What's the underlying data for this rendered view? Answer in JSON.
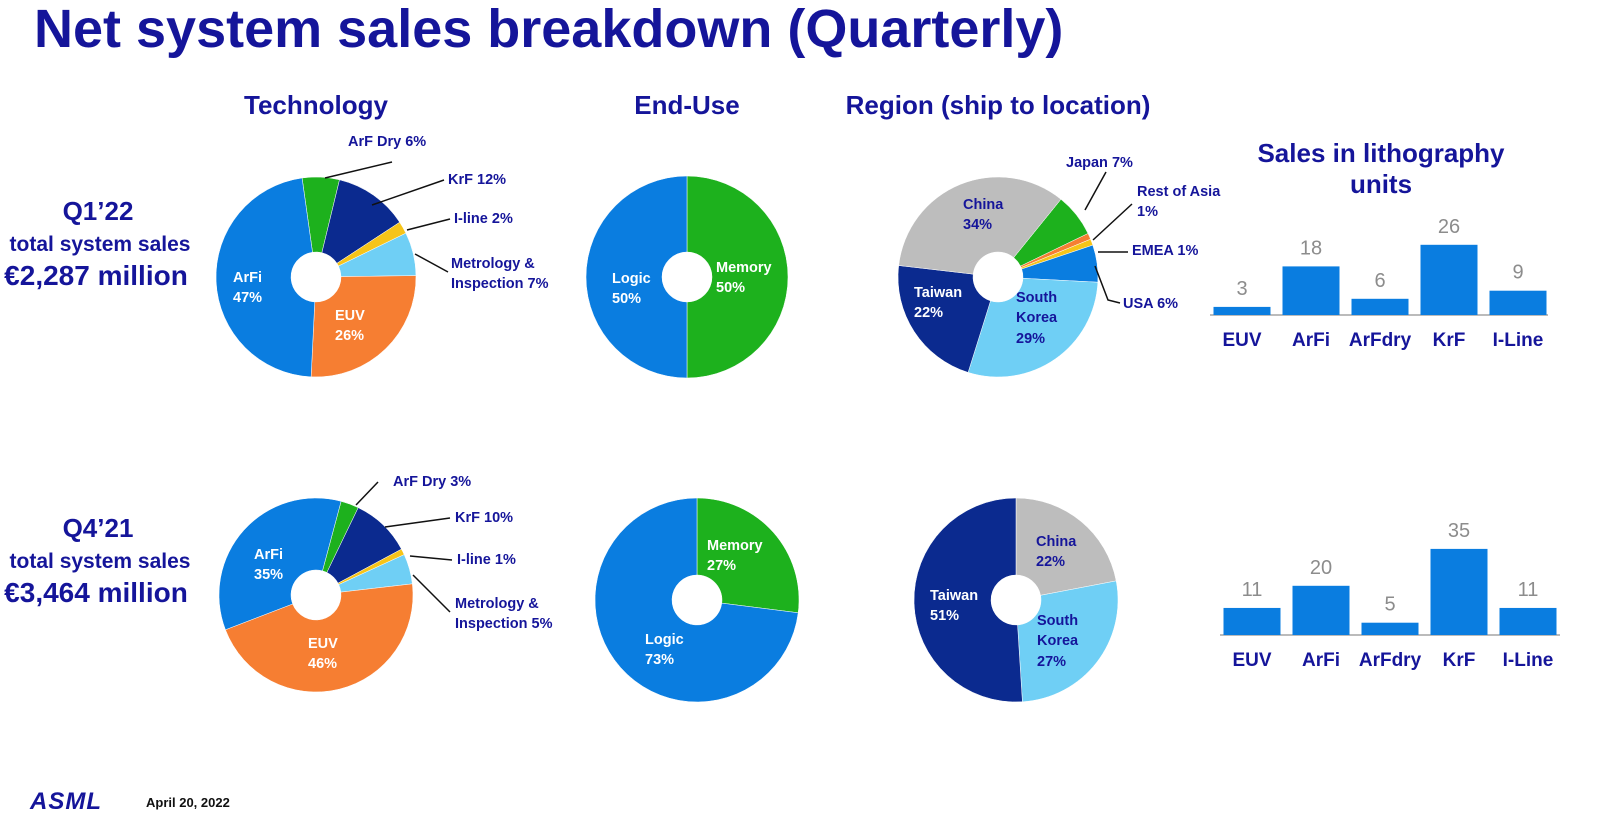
{
  "title": "Net system sales breakdown (Quarterly)",
  "column_titles": [
    "Technology",
    "End-Use",
    "Region (ship to location)"
  ],
  "units_title": "Sales in lithography units",
  "rows": [
    {
      "quarter": "Q1’22",
      "label": "total system sales",
      "amount": "€2,287 million"
    },
    {
      "quarter": "Q4’21",
      "label": "total system sales",
      "amount": "€3,464 million"
    }
  ],
  "footer": {
    "logo": "ASML",
    "date": "April 20, 2022"
  },
  "chart_data": [
    {
      "type": "pie",
      "categories": [
        "ArF Dry",
        "KrF",
        "I-line",
        "Metrology & Inspection",
        "EUV",
        "ArFi"
      ],
      "values": [
        6,
        12,
        2,
        7,
        26,
        47
      ],
      "value_labels": [
        "6%",
        "12%",
        "2%",
        "7%",
        "26%",
        "47%"
      ],
      "colors": [
        "#1db11d",
        "#0b2a8f",
        "#f6c419",
        "#6fcff5",
        "#f67e32",
        "#0a7de0"
      ]
    },
    {
      "type": "pie",
      "categories": [
        "Memory",
        "Logic"
      ],
      "values": [
        50,
        50
      ],
      "value_labels": [
        "50%",
        "50%"
      ],
      "colors": [
        "#1db11d",
        "#0a7de0"
      ]
    },
    {
      "type": "pie",
      "categories": [
        "Japan",
        "Rest of Asia",
        "EMEA",
        "USA",
        "South Korea",
        "Taiwan",
        "China"
      ],
      "values": [
        7,
        1,
        1,
        6,
        29,
        22,
        34
      ],
      "value_labels": [
        "7%",
        "1%",
        "1%",
        "6%",
        "29%",
        "22%",
        "34%"
      ],
      "colors": [
        "#1db11d",
        "#f67e32",
        "#f6c419",
        "#0a7de0",
        "#6fcff5",
        "#0b2a8f",
        "#bdbdbd"
      ]
    },
    {
      "type": "bar",
      "categories": [
        "EUV",
        "ArFi",
        "ArFdry",
        "KrF",
        "I-Line"
      ],
      "values": [
        3,
        18,
        6,
        26,
        9
      ],
      "color": "#0a7de0"
    },
    {
      "type": "pie",
      "categories": [
        "ArF Dry",
        "KrF",
        "I-line",
        "Metrology & Inspection",
        "EUV",
        "ArFi"
      ],
      "values": [
        3,
        10,
        1,
        5,
        46,
        35
      ],
      "value_labels": [
        "3%",
        "10%",
        "1%",
        "5%",
        "46%",
        "35%"
      ],
      "colors": [
        "#1db11d",
        "#0b2a8f",
        "#f6c419",
        "#6fcff5",
        "#f67e32",
        "#0a7de0"
      ]
    },
    {
      "type": "pie",
      "categories": [
        "Memory",
        "Logic"
      ],
      "values": [
        27,
        73
      ],
      "value_labels": [
        "27%",
        "73%"
      ],
      "colors": [
        "#1db11d",
        "#0a7de0"
      ]
    },
    {
      "type": "pie",
      "categories": [
        "China",
        "South Korea",
        "Taiwan"
      ],
      "values": [
        22,
        27,
        51
      ],
      "value_labels": [
        "22%",
        "27%",
        "51%"
      ],
      "colors": [
        "#bdbdbd",
        "#6fcff5",
        "#0b2a8f"
      ]
    },
    {
      "type": "bar",
      "categories": [
        "EUV",
        "ArFi",
        "ArFdry",
        "KrF",
        "I-Line"
      ],
      "values": [
        11,
        20,
        5,
        35,
        11
      ],
      "color": "#0a7de0"
    }
  ]
}
